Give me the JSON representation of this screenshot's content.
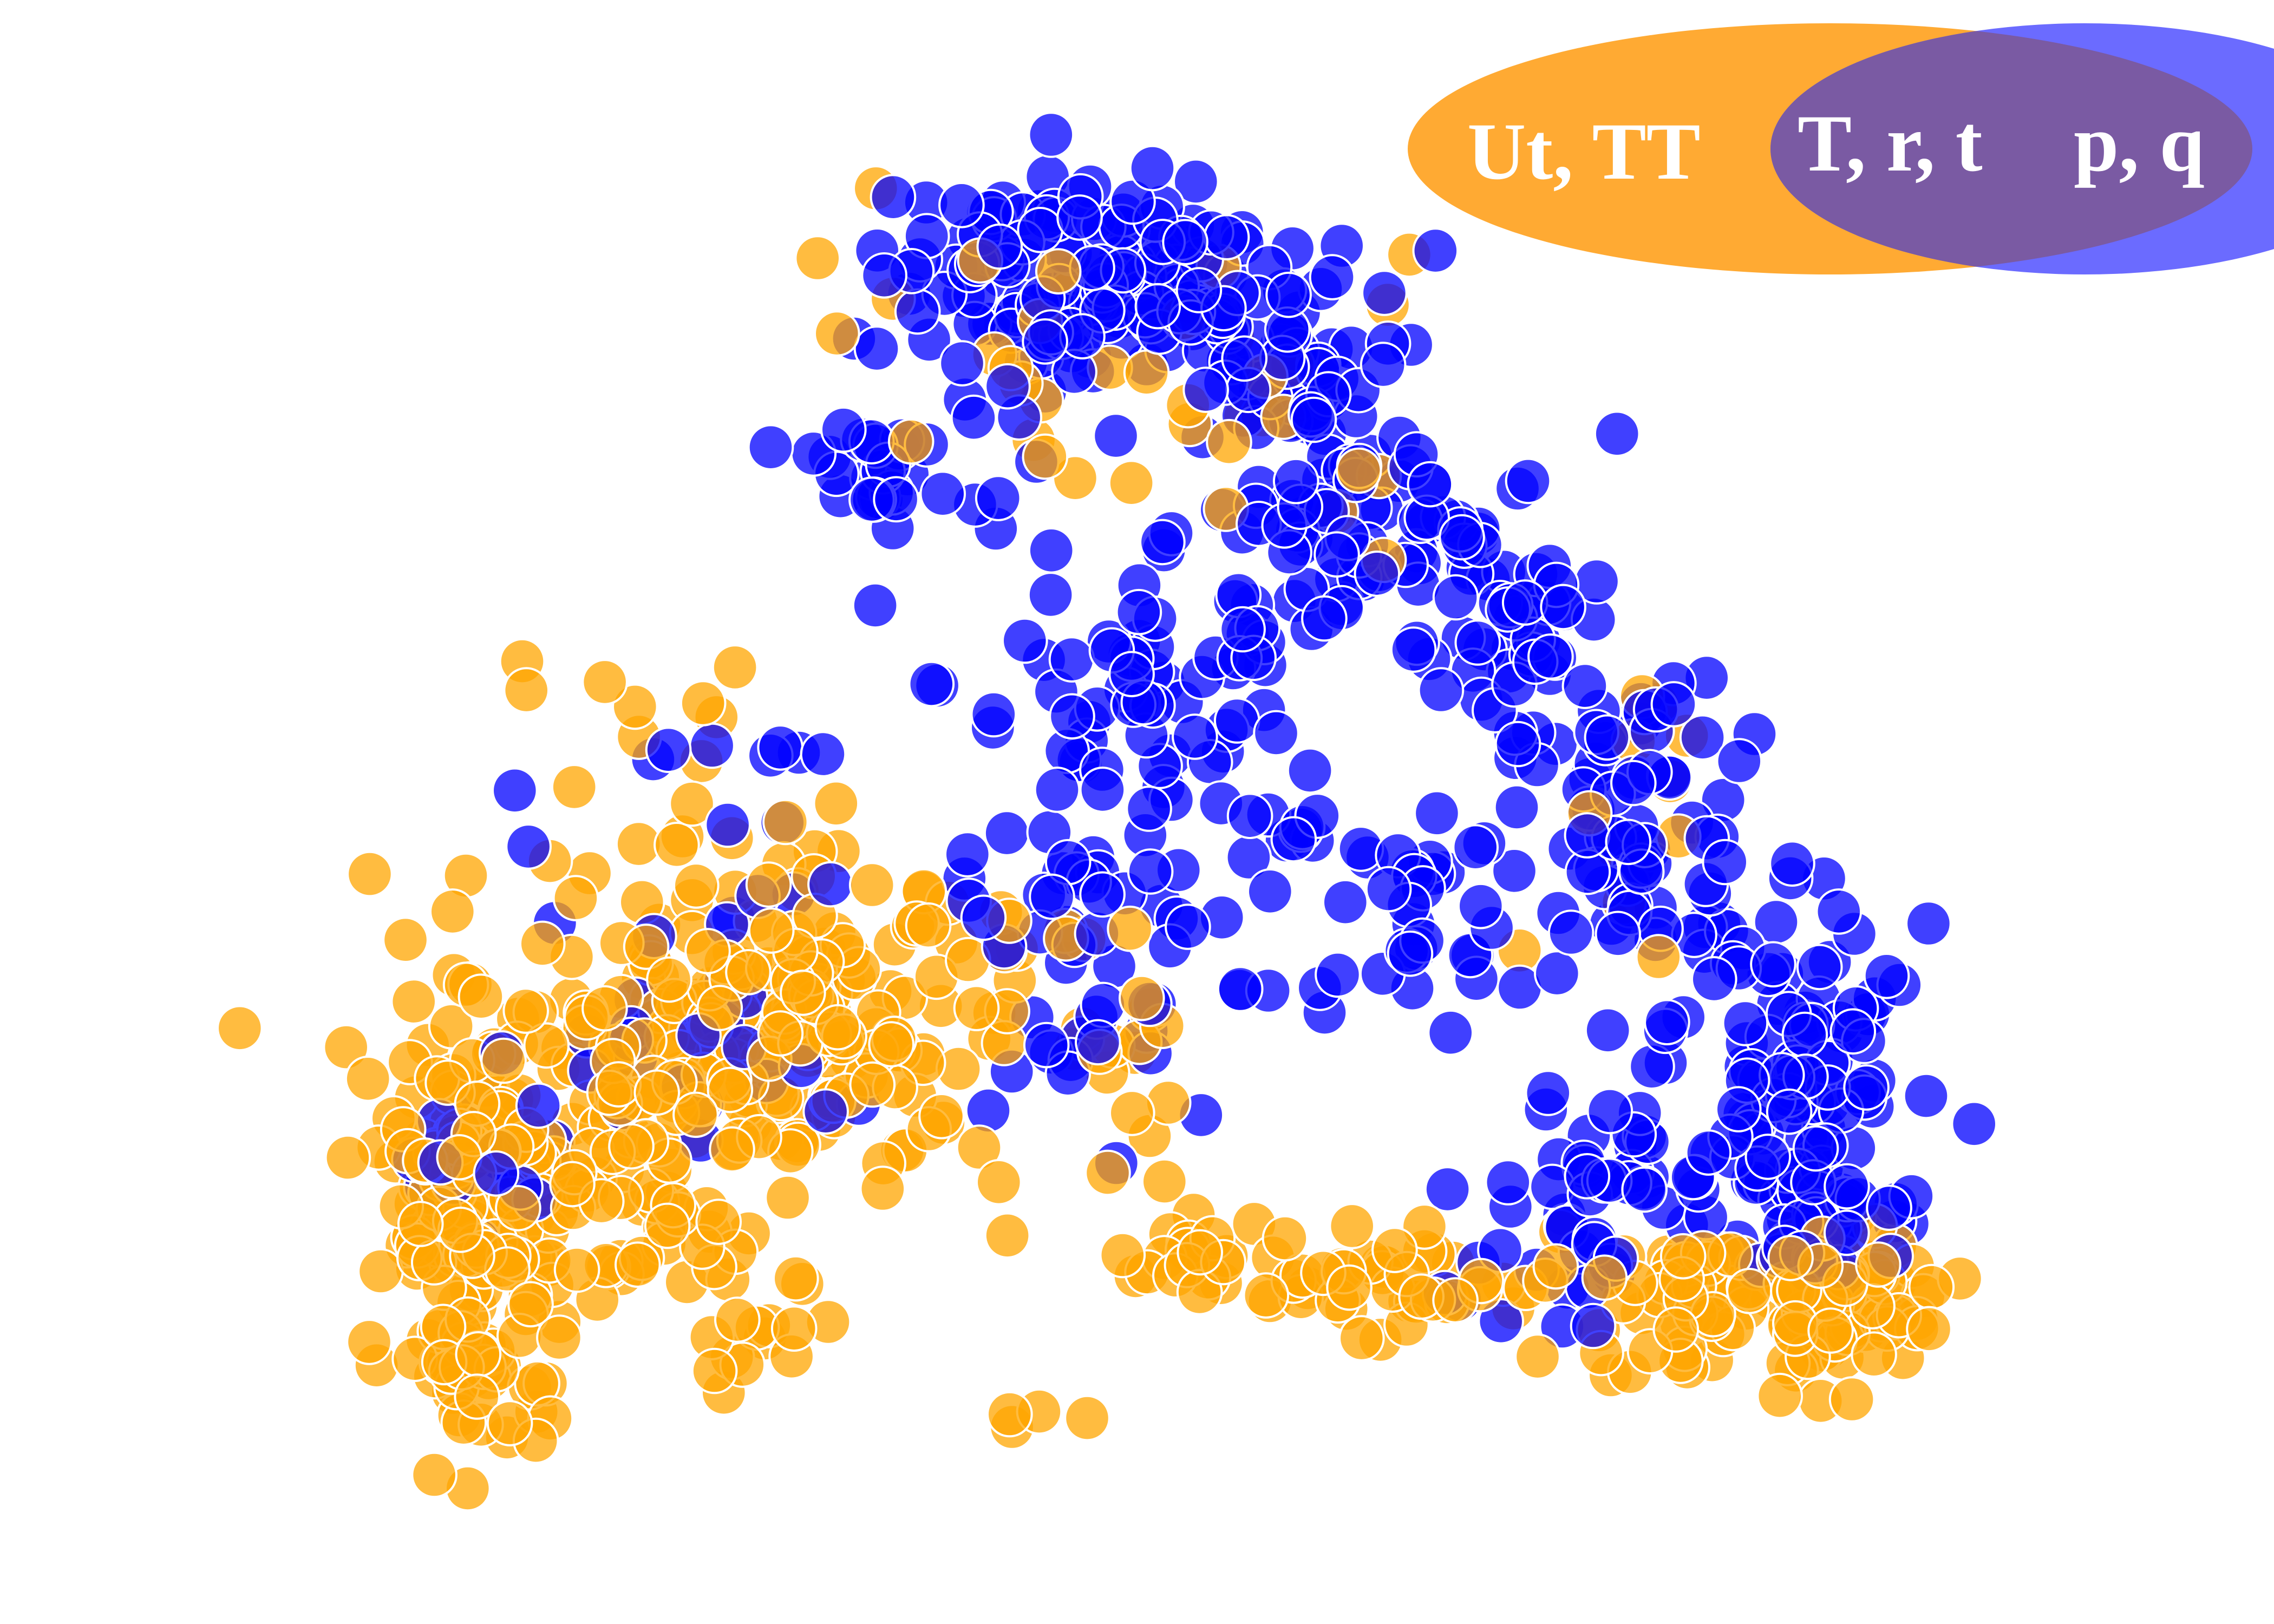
{
  "chart_data": {
    "type": "scatter",
    "title": "",
    "xlabel": "",
    "ylabel": "",
    "axes_visible": false,
    "grid": false,
    "legend": {
      "type": "venn",
      "placement": "top-right",
      "left_label": "Ut, TT",
      "center_label": "T, r, t",
      "right_label": "p, q"
    },
    "colors": {
      "orange": "#ffa500",
      "blue": "#0000ff",
      "legend_left": "#ffaa33",
      "legend_right": "#6b6bff",
      "legend_overlap": "#7a5aa3"
    },
    "note": "points in data units (image-pixel scale of a 1545x1101 rendering), y increases downward",
    "series": [
      {
        "color_key": "blue",
        "clusters": [
          {
            "cx": 735,
            "cy": 190,
            "rx": 135,
            "ry": 75,
            "n": 150
          },
          {
            "cx": 880,
            "cy": 250,
            "rx": 70,
            "ry": 80,
            "n": 60
          },
          {
            "cx": 600,
            "cy": 320,
            "rx": 75,
            "ry": 45,
            "n": 30
          },
          {
            "cx": 920,
            "cy": 360,
            "rx": 90,
            "ry": 70,
            "n": 60
          },
          {
            "cx": 1020,
            "cy": 410,
            "rx": 70,
            "ry": 90,
            "n": 50
          },
          {
            "cx": 780,
            "cy": 470,
            "rx": 140,
            "ry": 130,
            "n": 80
          },
          {
            "cx": 1120,
            "cy": 560,
            "rx": 80,
            "ry": 110,
            "n": 70
          },
          {
            "cx": 1215,
            "cy": 720,
            "rx": 80,
            "ry": 110,
            "n": 100
          },
          {
            "cx": 1240,
            "cy": 830,
            "rx": 55,
            "ry": 55,
            "n": 50
          },
          {
            "cx": 1100,
            "cy": 800,
            "rx": 80,
            "ry": 70,
            "n": 35
          },
          {
            "cx": 960,
            "cy": 630,
            "rx": 90,
            "ry": 80,
            "n": 40
          },
          {
            "cx": 720,
            "cy": 650,
            "rx": 120,
            "ry": 120,
            "n": 45
          },
          {
            "cx": 450,
            "cy": 700,
            "rx": 120,
            "ry": 100,
            "n": 30
          },
          {
            "cx": 330,
            "cy": 790,
            "rx": 50,
            "ry": 60,
            "n": 15
          },
          {
            "cx": 1040,
            "cy": 870,
            "rx": 60,
            "ry": 45,
            "n": 15
          },
          {
            "cx": 480,
            "cy": 520,
            "rx": 120,
            "ry": 80,
            "n": 12
          }
        ]
      },
      {
        "color_key": "orange",
        "clusters": [
          {
            "cx": 520,
            "cy": 690,
            "rx": 190,
            "ry": 110,
            "n": 260
          },
          {
            "cx": 320,
            "cy": 800,
            "rx": 70,
            "ry": 110,
            "n": 130
          },
          {
            "cx": 330,
            "cy": 930,
            "rx": 60,
            "ry": 60,
            "n": 45
          },
          {
            "cx": 440,
            "cy": 830,
            "rx": 120,
            "ry": 80,
            "n": 45
          },
          {
            "cx": 1250,
            "cy": 880,
            "rx": 55,
            "ry": 55,
            "n": 75
          },
          {
            "cx": 1150,
            "cy": 890,
            "rx": 70,
            "ry": 50,
            "n": 45
          },
          {
            "cx": 960,
            "cy": 880,
            "rx": 120,
            "ry": 40,
            "n": 40
          },
          {
            "cx": 790,
            "cy": 840,
            "rx": 90,
            "ry": 50,
            "n": 25
          },
          {
            "cx": 760,
            "cy": 710,
            "rx": 60,
            "ry": 60,
            "n": 12
          },
          {
            "cx": 720,
            "cy": 230,
            "rx": 170,
            "ry": 110,
            "n": 30
          },
          {
            "cx": 880,
            "cy": 300,
            "rx": 60,
            "ry": 80,
            "n": 10
          },
          {
            "cx": 430,
            "cy": 460,
            "rx": 80,
            "ry": 40,
            "n": 8
          },
          {
            "cx": 1110,
            "cy": 550,
            "rx": 60,
            "ry": 120,
            "n": 12
          },
          {
            "cx": 720,
            "cy": 970,
            "rx": 60,
            "ry": 20,
            "n": 4
          },
          {
            "cx": 500,
            "cy": 900,
            "rx": 60,
            "ry": 40,
            "n": 10
          }
        ]
      }
    ]
  }
}
